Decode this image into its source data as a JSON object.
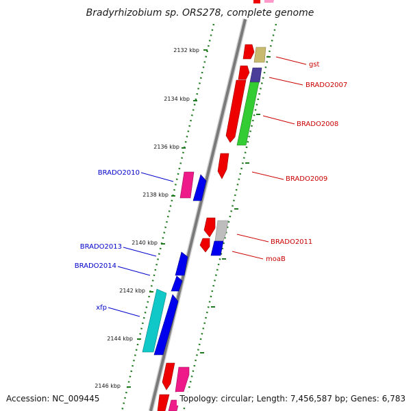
{
  "title": "Bradyrhizobium sp. ORS278, complete genome",
  "footer": {
    "accession": "Accession: NC_009445",
    "summary": "Topology: circular; Length: 7,456,587 bp; Genes: 6,783"
  },
  "ticks": [
    {
      "label": "2132 kbp"
    },
    {
      "label": "2134 kbp"
    },
    {
      "label": "2136 kbp"
    },
    {
      "label": "2138 kbp"
    },
    {
      "label": "2140 kbp"
    },
    {
      "label": "2142 kbp"
    },
    {
      "label": "2144 kbp"
    },
    {
      "label": "2146 kbp"
    }
  ],
  "right_labels": [
    {
      "text": "gst",
      "color": "#cc0000"
    },
    {
      "text": "BRADO2007",
      "color": "#cc0000"
    },
    {
      "text": "BRADO2008",
      "color": "#cc0000"
    },
    {
      "text": "BRADO2009",
      "color": "#cc0000"
    },
    {
      "text": "BRADO2011",
      "color": "#cc0000"
    },
    {
      "text": "moaB",
      "color": "#cc0000"
    }
  ],
  "left_labels": [
    {
      "text": "BRADO2010",
      "color": "#0000cc"
    },
    {
      "text": "BRADO2013",
      "color": "#0000cc"
    },
    {
      "text": "BRADO2014",
      "color": "#0000cc"
    },
    {
      "text": "xfp",
      "color": "#0000cc"
    }
  ],
  "colors": {
    "backbone": "#7a7a7a",
    "tick_green": "#1f7a1f",
    "forward_red": "#ee0000",
    "pink": "#ee1a8a",
    "blue": "#0000ee",
    "cyan": "#10c8c8",
    "green": "#33cc33",
    "khaki": "#c8bb70",
    "purple": "#4a3d99",
    "gray": "#bdbdbd"
  }
}
